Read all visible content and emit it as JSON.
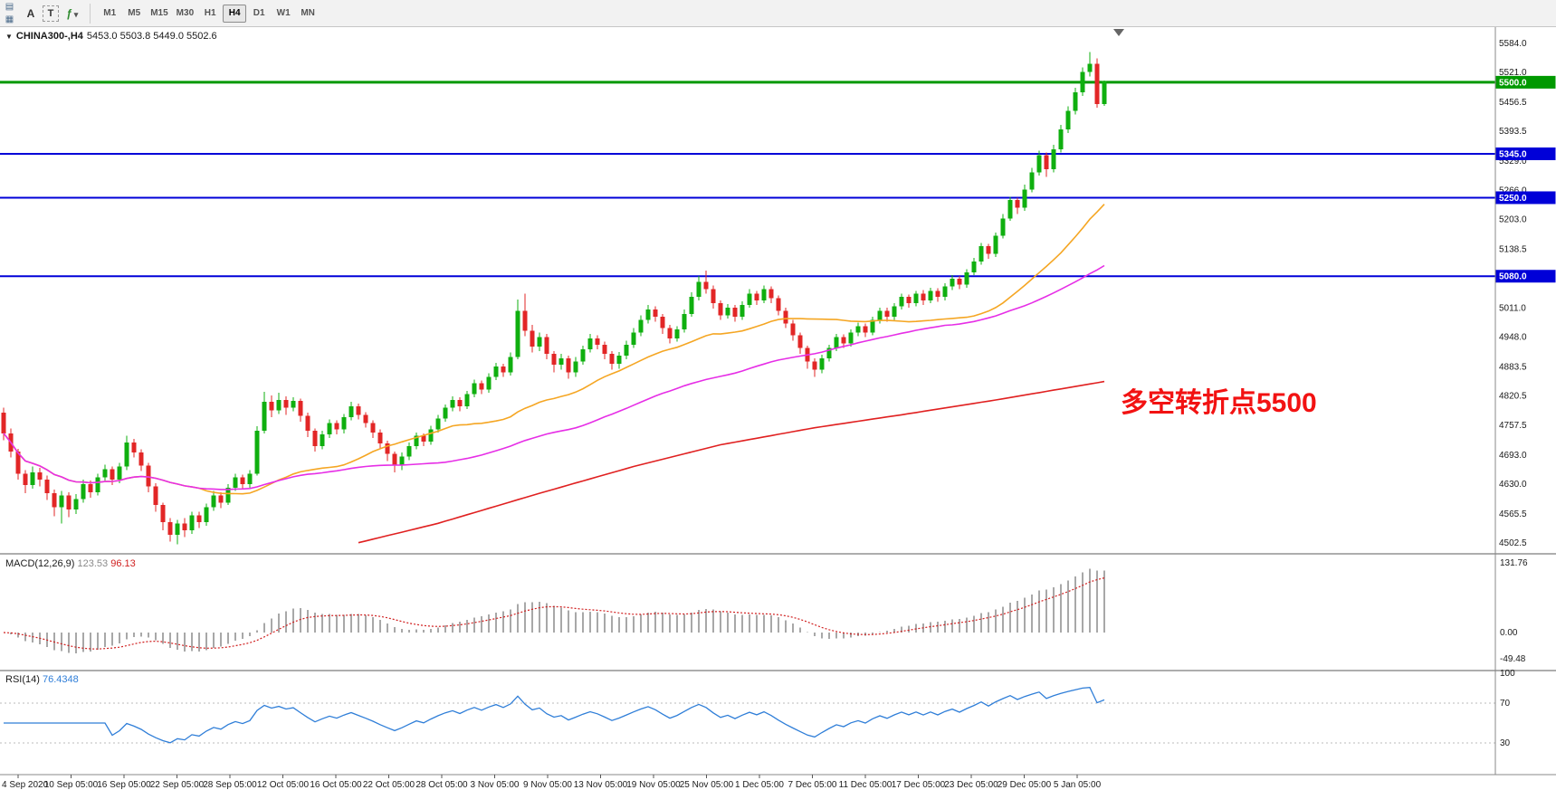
{
  "toolbar": {
    "icons": [
      "new-chart-icon",
      "chart-grid-icon",
      "indicators-icon",
      "chevron-down-icon"
    ],
    "text_tool_label": "A",
    "label_tool_label": "T",
    "timeframes": [
      {
        "label": "M1",
        "active": false
      },
      {
        "label": "M5",
        "active": false
      },
      {
        "label": "M15",
        "active": false
      },
      {
        "label": "M30",
        "active": false
      },
      {
        "label": "H1",
        "active": false
      },
      {
        "label": "H4",
        "active": true
      },
      {
        "label": "D1",
        "active": false
      },
      {
        "label": "W1",
        "active": false
      },
      {
        "label": "MN",
        "active": false
      }
    ]
  },
  "main_pane": {
    "symbol_title": "CHINA300-,H4",
    "ohlc_text": "5453.0 5503.8 5449.0 5502.6",
    "annotation": "多空转折点5500"
  },
  "macd_pane": {
    "label": "MACD(12,26,9)",
    "value_main": "123.53",
    "value_signal": "96.13"
  },
  "rsi_pane": {
    "label": "RSI(14)",
    "value": "76.4348"
  },
  "chart_data": {
    "type": "candlestick",
    "symbol": "CHINA300-",
    "period": "H4",
    "ylim": [
      4502.5,
      5584.0
    ],
    "y_axis_ticks": [
      "5584.0",
      "5521.0",
      "5456.5",
      "5393.5",
      "5329.0",
      "5266.0",
      "5203.0",
      "5138.5",
      "5075.5",
      "5011.0",
      "4948.0",
      "4883.5",
      "4820.5",
      "4757.5",
      "4693.0",
      "4630.0",
      "4565.5",
      "4502.5"
    ],
    "x_axis_labels": [
      "4 Sep 2020",
      "10 Sep 05:00",
      "16 Sep 05:00",
      "22 Sep 05:00",
      "28 Sep 05:00",
      "12 Oct 05:00",
      "16 Oct 05:00",
      "22 Oct 05:00",
      "28 Oct 05:00",
      "3 Nov 05:00",
      "9 Nov 05:00",
      "13 Nov 05:00",
      "19 Nov 05:00",
      "25 Nov 05:00",
      "1 Dec 05:00",
      "7 Dec 05:00",
      "11 Dec 05:00",
      "17 Dec 05:00",
      "23 Dec 05:00",
      "29 Dec 05:00",
      "5 Jan 05:00"
    ],
    "h_lines": [
      {
        "price": 5500.0,
        "label": "5500.0",
        "color": "#009900",
        "width": 3
      },
      {
        "price": 5345.0,
        "label": "5345.0",
        "color": "#0000d8",
        "width": 2
      },
      {
        "price": 5250.0,
        "label": "5250.0",
        "color": "#0000d8",
        "width": 2
      },
      {
        "price": 5080.0,
        "label": "5080.0",
        "color": "#0000d8",
        "width": 2
      }
    ],
    "candles": [
      [
        4785,
        4795,
        4725,
        4740
      ],
      [
        4740,
        4750,
        4688,
        4700
      ],
      [
        4700,
        4706,
        4640,
        4652
      ],
      [
        4652,
        4660,
        4610,
        4628
      ],
      [
        4628,
        4668,
        4620,
        4655
      ],
      [
        4655,
        4665,
        4625,
        4640
      ],
      [
        4640,
        4648,
        4596,
        4610
      ],
      [
        4610,
        4618,
        4560,
        4580
      ],
      [
        4580,
        4615,
        4545,
        4605
      ],
      [
        4605,
        4612,
        4558,
        4575
      ],
      [
        4575,
        4608,
        4565,
        4598
      ],
      [
        4598,
        4640,
        4590,
        4630
      ],
      [
        4630,
        4638,
        4600,
        4612
      ],
      [
        4612,
        4652,
        4605,
        4645
      ],
      [
        4645,
        4672,
        4638,
        4662
      ],
      [
        4662,
        4668,
        4628,
        4640
      ],
      [
        4640,
        4676,
        4632,
        4668
      ],
      [
        4668,
        4735,
        4660,
        4720
      ],
      [
        4720,
        4728,
        4688,
        4698
      ],
      [
        4698,
        4705,
        4658,
        4670
      ],
      [
        4670,
        4676,
        4612,
        4625
      ],
      [
        4625,
        4632,
        4570,
        4585
      ],
      [
        4585,
        4590,
        4530,
        4548
      ],
      [
        4548,
        4556,
        4505,
        4520
      ],
      [
        4520,
        4552,
        4500,
        4545
      ],
      [
        4545,
        4556,
        4515,
        4530
      ],
      [
        4530,
        4570,
        4522,
        4562
      ],
      [
        4562,
        4570,
        4535,
        4548
      ],
      [
        4548,
        4588,
        4540,
        4580
      ],
      [
        4580,
        4615,
        4572,
        4605
      ],
      [
        4605,
        4612,
        4578,
        4590
      ],
      [
        4590,
        4630,
        4585,
        4622
      ],
      [
        4622,
        4652,
        4615,
        4645
      ],
      [
        4645,
        4650,
        4618,
        4630
      ],
      [
        4630,
        4660,
        4622,
        4652
      ],
      [
        4652,
        4755,
        4648,
        4745
      ],
      [
        4745,
        4830,
        4740,
        4808
      ],
      [
        4808,
        4822,
        4775,
        4790
      ],
      [
        4790,
        4828,
        4782,
        4812
      ],
      [
        4812,
        4820,
        4780,
        4795
      ],
      [
        4795,
        4818,
        4788,
        4810
      ],
      [
        4810,
        4815,
        4765,
        4778
      ],
      [
        4778,
        4785,
        4732,
        4745
      ],
      [
        4745,
        4750,
        4700,
        4712
      ],
      [
        4712,
        4745,
        4705,
        4738
      ],
      [
        4738,
        4770,
        4730,
        4762
      ],
      [
        4762,
        4768,
        4738,
        4748
      ],
      [
        4748,
        4782,
        4740,
        4775
      ],
      [
        4775,
        4808,
        4768,
        4798
      ],
      [
        4798,
        4804,
        4770,
        4780
      ],
      [
        4780,
        4786,
        4752,
        4762
      ],
      [
        4762,
        4768,
        4730,
        4742
      ],
      [
        4742,
        4748,
        4705,
        4718
      ],
      [
        4718,
        4724,
        4680,
        4695
      ],
      [
        4695,
        4700,
        4655,
        4672
      ],
      [
        4672,
        4698,
        4660,
        4690
      ],
      [
        4690,
        4720,
        4682,
        4712
      ],
      [
        4712,
        4742,
        4705,
        4735
      ],
      [
        4735,
        4740,
        4712,
        4722
      ],
      [
        4722,
        4756,
        4715,
        4748
      ],
      [
        4748,
        4780,
        4742,
        4772
      ],
      [
        4772,
        4802,
        4765,
        4795
      ],
      [
        4795,
        4820,
        4788,
        4812
      ],
      [
        4812,
        4818,
        4788,
        4798
      ],
      [
        4798,
        4832,
        4792,
        4825
      ],
      [
        4825,
        4856,
        4818,
        4848
      ],
      [
        4848,
        4854,
        4825,
        4835
      ],
      [
        4835,
        4870,
        4828,
        4862
      ],
      [
        4862,
        4892,
        4855,
        4885
      ],
      [
        4885,
        4890,
        4862,
        4872
      ],
      [
        4872,
        4915,
        4865,
        4905
      ],
      [
        4905,
        5030,
        4900,
        5005
      ],
      [
        5005,
        5042,
        4950,
        4962
      ],
      [
        4962,
        4975,
        4915,
        4928
      ],
      [
        4928,
        4958,
        4918,
        4948
      ],
      [
        4948,
        4955,
        4900,
        4912
      ],
      [
        4912,
        4918,
        4872,
        4888
      ],
      [
        4888,
        4912,
        4878,
        4902
      ],
      [
        4902,
        4908,
        4858,
        4872
      ],
      [
        4872,
        4905,
        4862,
        4895
      ],
      [
        4895,
        4930,
        4888,
        4922
      ],
      [
        4922,
        4955,
        4915,
        4945
      ],
      [
        4945,
        4952,
        4922,
        4932
      ],
      [
        4932,
        4938,
        4900,
        4912
      ],
      [
        4912,
        4918,
        4878,
        4890
      ],
      [
        4890,
        4916,
        4880,
        4908
      ],
      [
        4908,
        4940,
        4900,
        4932
      ],
      [
        4932,
        4968,
        4925,
        4958
      ],
      [
        4958,
        4995,
        4950,
        4985
      ],
      [
        4985,
        5018,
        4978,
        5008
      ],
      [
        5008,
        5015,
        4982,
        4992
      ],
      [
        4992,
        4998,
        4955,
        4968
      ],
      [
        4968,
        4975,
        4935,
        4945
      ],
      [
        4945,
        4972,
        4938,
        4965
      ],
      [
        4965,
        5008,
        4958,
        4998
      ],
      [
        4998,
        5045,
        4992,
        5035
      ],
      [
        5035,
        5080,
        5028,
        5068
      ],
      [
        5068,
        5092,
        5042,
        5052
      ],
      [
        5052,
        5060,
        5010,
        5022
      ],
      [
        5022,
        5028,
        4985,
        4995
      ],
      [
        4995,
        5020,
        4988,
        5012
      ],
      [
        5012,
        5018,
        4982,
        4992
      ],
      [
        4992,
        5026,
        4985,
        5018
      ],
      [
        5018,
        5052,
        5012,
        5042
      ],
      [
        5042,
        5048,
        5018,
        5028
      ],
      [
        5028,
        5060,
        5022,
        5052
      ],
      [
        5052,
        5058,
        5022,
        5032
      ],
      [
        5032,
        5038,
        4995,
        5005
      ],
      [
        5005,
        5012,
        4968,
        4978
      ],
      [
        4978,
        4985,
        4940,
        4952
      ],
      [
        4952,
        4958,
        4912,
        4925
      ],
      [
        4925,
        4930,
        4880,
        4895
      ],
      [
        4895,
        4902,
        4862,
        4878
      ],
      [
        4878,
        4910,
        4870,
        4902
      ],
      [
        4902,
        4932,
        4895,
        4925
      ],
      [
        4925,
        4955,
        4918,
        4948
      ],
      [
        4948,
        4954,
        4925,
        4935
      ],
      [
        4935,
        4965,
        4928,
        4958
      ],
      [
        4958,
        4980,
        4950,
        4972
      ],
      [
        4972,
        4978,
        4948,
        4958
      ],
      [
        4958,
        4992,
        4952,
        4985
      ],
      [
        4985,
        5012,
        4978,
        5005
      ],
      [
        5005,
        5012,
        4982,
        4992
      ],
      [
        4992,
        5022,
        4985,
        5015
      ],
      [
        5015,
        5042,
        5008,
        5035
      ],
      [
        5035,
        5040,
        5012,
        5022
      ],
      [
        5022,
        5048,
        5015,
        5042
      ],
      [
        5042,
        5050,
        5018,
        5028
      ],
      [
        5028,
        5055,
        5022,
        5048
      ],
      [
        5048,
        5054,
        5025,
        5035
      ],
      [
        5035,
        5065,
        5028,
        5058
      ],
      [
        5058,
        5082,
        5050,
        5075
      ],
      [
        5075,
        5080,
        5052,
        5062
      ],
      [
        5062,
        5095,
        5055,
        5088
      ],
      [
        5088,
        5120,
        5082,
        5112
      ],
      [
        5112,
        5152,
        5105,
        5145
      ],
      [
        5145,
        5150,
        5118,
        5128
      ],
      [
        5128,
        5175,
        5122,
        5168
      ],
      [
        5168,
        5215,
        5162,
        5205
      ],
      [
        5205,
        5252,
        5200,
        5245
      ],
      [
        5245,
        5250,
        5215,
        5228
      ],
      [
        5228,
        5278,
        5222,
        5268
      ],
      [
        5268,
        5315,
        5262,
        5305
      ],
      [
        5305,
        5352,
        5298,
        5342
      ],
      [
        5342,
        5348,
        5295,
        5312
      ],
      [
        5312,
        5365,
        5305,
        5355
      ],
      [
        5355,
        5408,
        5348,
        5398
      ],
      [
        5398,
        5448,
        5390,
        5438
      ],
      [
        5438,
        5488,
        5430,
        5478
      ],
      [
        5478,
        5532,
        5470,
        5522
      ],
      [
        5522,
        5565,
        5512,
        5540
      ],
      [
        5540,
        5552,
        5445,
        5453
      ],
      [
        5453,
        5503.8,
        5449,
        5502.6
      ]
    ],
    "moving_averages": {
      "orange_period": 28,
      "magenta_period": 60,
      "red_anchor_points": [
        [
          49,
          4503
        ],
        [
          60,
          4545
        ],
        [
          74,
          4610
        ],
        [
          87,
          4668
        ],
        [
          99,
          4715
        ],
        [
          112,
          4752
        ],
        [
          124,
          4780
        ],
        [
          137,
          4812
        ],
        [
          152,
          4852
        ]
      ]
    },
    "macd": {
      "params": [
        12,
        26,
        9
      ],
      "current_main": 123.53,
      "current_signal": 96.13,
      "axis_ticks": [
        131.76,
        0,
        -49.48
      ]
    },
    "rsi": {
      "period": 14,
      "current": 76.4348,
      "levels": [
        70,
        30
      ],
      "axis_ticks": [
        100,
        70,
        30
      ]
    },
    "colors": {
      "up": "#0faf0f",
      "down": "#e22626",
      "ma_orange": "#f5a623",
      "ma_magenta": "#e62ee6",
      "ma_red": "#e02020",
      "macd_hist": "#a8a8a8",
      "macd_signal": "#d02020",
      "rsi": "#2f7ed8"
    }
  }
}
